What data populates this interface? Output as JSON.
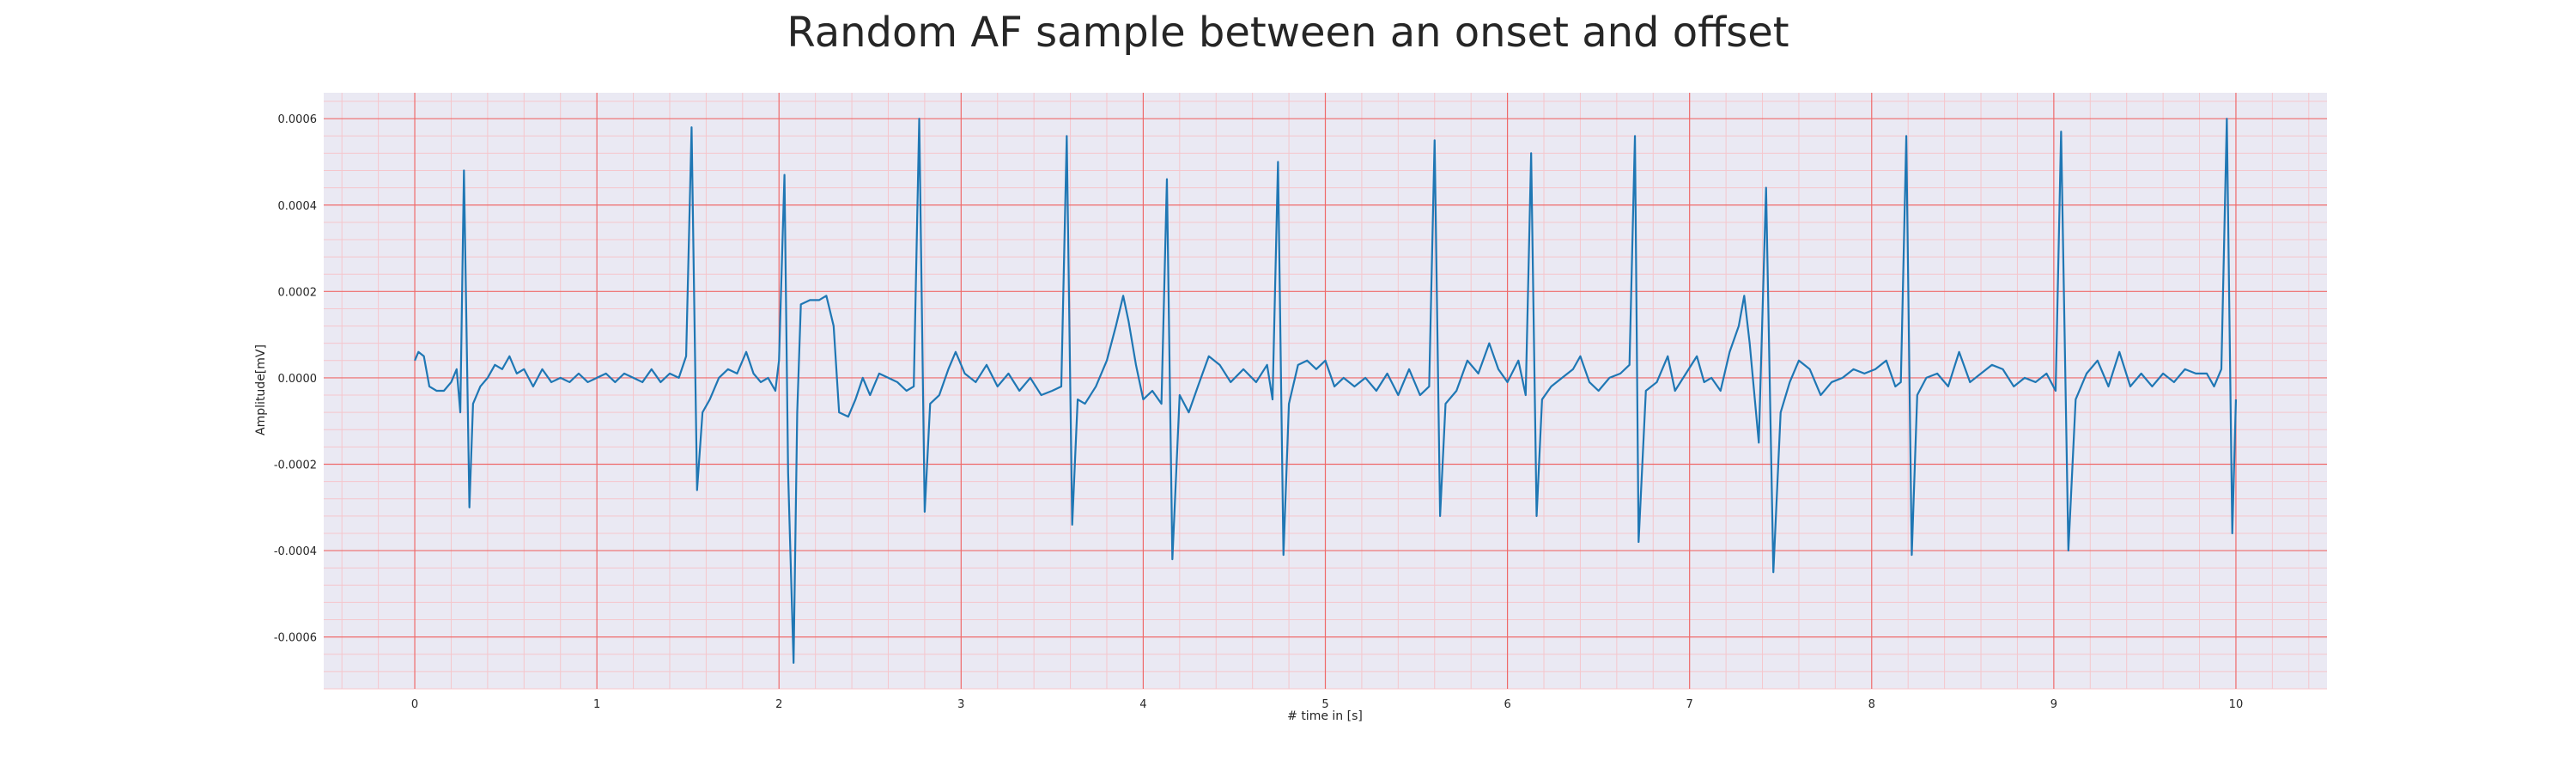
{
  "chart_data": {
    "type": "line",
    "title": "Random AF sample between an onset and offset",
    "xlabel": "# time in [s]",
    "ylabel": "Amplitude[mV]",
    "xlim": [
      -0.5,
      10.5
    ],
    "ylim": [
      -0.00072,
      0.00066
    ],
    "x_ticks": [
      0,
      1,
      2,
      3,
      4,
      5,
      6,
      7,
      8,
      9,
      10
    ],
    "x_tick_labels": [
      "0",
      "1",
      "2",
      "3",
      "4",
      "5",
      "6",
      "7",
      "8",
      "9",
      "10"
    ],
    "y_ticks": [
      0.0006,
      0.0004,
      0.0002,
      0.0,
      -0.0002,
      -0.0004,
      -0.0006
    ],
    "y_tick_labels": [
      "0.0006",
      "0.0004",
      "0.0002",
      "0.0000",
      "-0.0002",
      "-0.0004",
      "-0.0006"
    ],
    "grid": true,
    "minor_grid": true,
    "colors": {
      "background": "#eae9f3",
      "major_grid": "#ef6a6a",
      "minor_grid": "#f5c6cc",
      "line": "#1f77b4",
      "text": "#262626"
    },
    "series": [
      {
        "points": [
          [
            0.0,
            4e-05
          ],
          [
            0.02,
            6e-05
          ],
          [
            0.05,
            5e-05
          ],
          [
            0.08,
            -2e-05
          ],
          [
            0.12,
            -3e-05
          ],
          [
            0.16,
            -3e-05
          ],
          [
            0.2,
            -1e-05
          ],
          [
            0.23,
            2e-05
          ],
          [
            0.25,
            -8e-05
          ],
          [
            0.27,
            0.00048
          ],
          [
            0.3,
            -0.0003
          ],
          [
            0.32,
            -6e-05
          ],
          [
            0.36,
            -2e-05
          ],
          [
            0.4,
            0.0
          ],
          [
            0.44,
            3e-05
          ],
          [
            0.48,
            2e-05
          ],
          [
            0.52,
            5e-05
          ],
          [
            0.56,
            1e-05
          ],
          [
            0.6,
            2e-05
          ],
          [
            0.65,
            -2e-05
          ],
          [
            0.7,
            2e-05
          ],
          [
            0.75,
            -1e-05
          ],
          [
            0.8,
            0.0
          ],
          [
            0.85,
            -1e-05
          ],
          [
            0.9,
            1e-05
          ],
          [
            0.95,
            -1e-05
          ],
          [
            1.0,
            0.0
          ],
          [
            1.05,
            1e-05
          ],
          [
            1.1,
            -1e-05
          ],
          [
            1.15,
            1e-05
          ],
          [
            1.2,
            0.0
          ],
          [
            1.25,
            -1e-05
          ],
          [
            1.3,
            2e-05
          ],
          [
            1.35,
            -1e-05
          ],
          [
            1.4,
            1e-05
          ],
          [
            1.45,
            0.0
          ],
          [
            1.49,
            5e-05
          ],
          [
            1.52,
            0.00058
          ],
          [
            1.55,
            -0.00026
          ],
          [
            1.58,
            -8e-05
          ],
          [
            1.62,
            -5e-05
          ],
          [
            1.67,
            0.0
          ],
          [
            1.72,
            2e-05
          ],
          [
            1.77,
            1e-05
          ],
          [
            1.82,
            6e-05
          ],
          [
            1.86,
            1e-05
          ],
          [
            1.9,
            -1e-05
          ],
          [
            1.94,
            0.0
          ],
          [
            1.98,
            -3e-05
          ],
          [
            2.0,
            4e-05
          ],
          [
            2.03,
            0.00047
          ],
          [
            2.05,
            -0.00022
          ],
          [
            2.08,
            -0.00066
          ],
          [
            2.1,
            -8e-05
          ],
          [
            2.12,
            0.00017
          ],
          [
            2.17,
            0.00018
          ],
          [
            2.22,
            0.00018
          ],
          [
            2.26,
            0.00019
          ],
          [
            2.3,
            0.00012
          ],
          [
            2.33,
            -8e-05
          ],
          [
            2.38,
            -9e-05
          ],
          [
            2.42,
            -5e-05
          ],
          [
            2.46,
            0.0
          ],
          [
            2.5,
            -4e-05
          ],
          [
            2.55,
            1e-05
          ],
          [
            2.6,
            0.0
          ],
          [
            2.65,
            -1e-05
          ],
          [
            2.7,
            -3e-05
          ],
          [
            2.74,
            -2e-05
          ],
          [
            2.77,
            0.0006
          ],
          [
            2.8,
            -0.00031
          ],
          [
            2.83,
            -6e-05
          ],
          [
            2.88,
            -4e-05
          ],
          [
            2.93,
            2e-05
          ],
          [
            2.97,
            6e-05
          ],
          [
            3.02,
            1e-05
          ],
          [
            3.08,
            -1e-05
          ],
          [
            3.14,
            3e-05
          ],
          [
            3.2,
            -2e-05
          ],
          [
            3.26,
            1e-05
          ],
          [
            3.32,
            -3e-05
          ],
          [
            3.38,
            0.0
          ],
          [
            3.44,
            -4e-05
          ],
          [
            3.5,
            -3e-05
          ],
          [
            3.55,
            -2e-05
          ],
          [
            3.58,
            0.00056
          ],
          [
            3.61,
            -0.00034
          ],
          [
            3.64,
            -5e-05
          ],
          [
            3.68,
            -6e-05
          ],
          [
            3.74,
            -2e-05
          ],
          [
            3.8,
            4e-05
          ],
          [
            3.85,
            0.00012
          ],
          [
            3.89,
            0.00019
          ],
          [
            3.92,
            0.00013
          ],
          [
            3.96,
            3e-05
          ],
          [
            4.0,
            -5e-05
          ],
          [
            4.05,
            -3e-05
          ],
          [
            4.1,
            -6e-05
          ],
          [
            4.13,
            0.00046
          ],
          [
            4.16,
            -0.00042
          ],
          [
            4.2,
            -4e-05
          ],
          [
            4.25,
            -8e-05
          ],
          [
            4.3,
            -2e-05
          ],
          [
            4.36,
            5e-05
          ],
          [
            4.42,
            3e-05
          ],
          [
            4.48,
            -1e-05
          ],
          [
            4.55,
            2e-05
          ],
          [
            4.62,
            -1e-05
          ],
          [
            4.68,
            3e-05
          ],
          [
            4.71,
            -5e-05
          ],
          [
            4.74,
            0.0005
          ],
          [
            4.77,
            -0.00041
          ],
          [
            4.8,
            -6e-05
          ],
          [
            4.85,
            3e-05
          ],
          [
            4.9,
            4e-05
          ],
          [
            4.95,
            2e-05
          ],
          [
            5.0,
            4e-05
          ],
          [
            5.05,
            -2e-05
          ],
          [
            5.1,
            0.0
          ],
          [
            5.16,
            -2e-05
          ],
          [
            5.22,
            0.0
          ],
          [
            5.28,
            -3e-05
          ],
          [
            5.34,
            1e-05
          ],
          [
            5.4,
            -4e-05
          ],
          [
            5.46,
            2e-05
          ],
          [
            5.52,
            -4e-05
          ],
          [
            5.57,
            -2e-05
          ],
          [
            5.6,
            0.00055
          ],
          [
            5.63,
            -0.00032
          ],
          [
            5.66,
            -6e-05
          ],
          [
            5.72,
            -3e-05
          ],
          [
            5.78,
            4e-05
          ],
          [
            5.84,
            1e-05
          ],
          [
            5.9,
            8e-05
          ],
          [
            5.95,
            2e-05
          ],
          [
            6.0,
            -1e-05
          ],
          [
            6.06,
            4e-05
          ],
          [
            6.1,
            -4e-05
          ],
          [
            6.13,
            0.00052
          ],
          [
            6.16,
            -0.00032
          ],
          [
            6.19,
            -5e-05
          ],
          [
            6.24,
            -2e-05
          ],
          [
            6.3,
            0.0
          ],
          [
            6.36,
            2e-05
          ],
          [
            6.4,
            5e-05
          ],
          [
            6.45,
            -1e-05
          ],
          [
            6.5,
            -3e-05
          ],
          [
            6.56,
            0.0
          ],
          [
            6.62,
            1e-05
          ],
          [
            6.67,
            3e-05
          ],
          [
            6.7,
            0.00056
          ],
          [
            6.72,
            -0.00038
          ],
          [
            6.76,
            -3e-05
          ],
          [
            6.82,
            -1e-05
          ],
          [
            6.88,
            5e-05
          ],
          [
            6.92,
            -3e-05
          ],
          [
            6.98,
            1e-05
          ],
          [
            7.04,
            5e-05
          ],
          [
            7.08,
            -1e-05
          ],
          [
            7.12,
            0.0
          ],
          [
            7.17,
            -3e-05
          ],
          [
            7.22,
            6e-05
          ],
          [
            7.27,
            0.00012
          ],
          [
            7.3,
            0.00019
          ],
          [
            7.33,
            8e-05
          ],
          [
            7.38,
            -0.00015
          ],
          [
            7.42,
            0.00044
          ],
          [
            7.46,
            -0.00045
          ],
          [
            7.5,
            -8e-05
          ],
          [
            7.55,
            -1e-05
          ],
          [
            7.6,
            4e-05
          ],
          [
            7.66,
            2e-05
          ],
          [
            7.72,
            -4e-05
          ],
          [
            7.78,
            -1e-05
          ],
          [
            7.84,
            0.0
          ],
          [
            7.9,
            2e-05
          ],
          [
            7.96,
            1e-05
          ],
          [
            8.02,
            2e-05
          ],
          [
            8.08,
            4e-05
          ],
          [
            8.13,
            -2e-05
          ],
          [
            8.16,
            -1e-05
          ],
          [
            8.19,
            0.00056
          ],
          [
            8.22,
            -0.00041
          ],
          [
            8.25,
            -4e-05
          ],
          [
            8.3,
            0.0
          ],
          [
            8.36,
            1e-05
          ],
          [
            8.42,
            -2e-05
          ],
          [
            8.48,
            6e-05
          ],
          [
            8.54,
            -1e-05
          ],
          [
            8.6,
            1e-05
          ],
          [
            8.66,
            3e-05
          ],
          [
            8.72,
            2e-05
          ],
          [
            8.78,
            -2e-05
          ],
          [
            8.84,
            0.0
          ],
          [
            8.9,
            -1e-05
          ],
          [
            8.96,
            1e-05
          ],
          [
            9.01,
            -3e-05
          ],
          [
            9.04,
            0.00057
          ],
          [
            9.08,
            -0.0004
          ],
          [
            9.12,
            -5e-05
          ],
          [
            9.18,
            1e-05
          ],
          [
            9.24,
            4e-05
          ],
          [
            9.3,
            -2e-05
          ],
          [
            9.36,
            6e-05
          ],
          [
            9.42,
            -2e-05
          ],
          [
            9.48,
            1e-05
          ],
          [
            9.54,
            -2e-05
          ],
          [
            9.6,
            1e-05
          ],
          [
            9.66,
            -1e-05
          ],
          [
            9.72,
            2e-05
          ],
          [
            9.78,
            1e-05
          ],
          [
            9.84,
            1e-05
          ],
          [
            9.88,
            -2e-05
          ],
          [
            9.92,
            2e-05
          ],
          [
            9.95,
            0.0006
          ],
          [
            9.98,
            -0.00036
          ],
          [
            10.0,
            -5e-05
          ]
        ]
      }
    ]
  }
}
